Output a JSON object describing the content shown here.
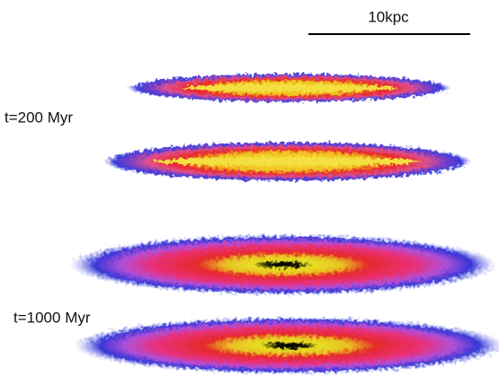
{
  "scale_bar": {
    "label": "10kpc"
  },
  "panels": [
    {
      "label": "t=200 Myr"
    },
    {
      "label": "t=1000 Myr"
    }
  ]
}
